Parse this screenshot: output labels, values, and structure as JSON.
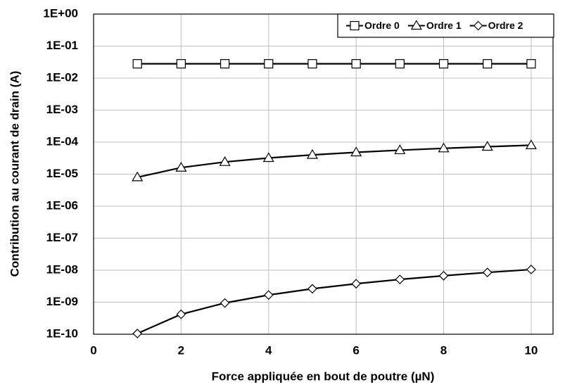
{
  "chart_data": {
    "type": "line",
    "x_label": "Force appliquée en bout de poutre (µN)",
    "y_label": "Contribution au courant de drain (A)",
    "log_y": true,
    "grid": true,
    "legend": "top-right",
    "xlim": [
      0,
      10.5
    ],
    "xticks": [
      0,
      2,
      4,
      6,
      8,
      10
    ],
    "ylim": [
      1e-10,
      1
    ],
    "yticks": [
      {
        "value": 1,
        "label": "1E+00"
      },
      {
        "value": 0.1,
        "label": "1E-01"
      },
      {
        "value": 0.01,
        "label": "1E-02"
      },
      {
        "value": 0.001,
        "label": "1E-03"
      },
      {
        "value": 0.0001,
        "label": "1E-04"
      },
      {
        "value": 1e-05,
        "label": "1E-05"
      },
      {
        "value": 1e-06,
        "label": "1E-06"
      },
      {
        "value": 1e-07,
        "label": "1E-07"
      },
      {
        "value": 1e-08,
        "label": "1E-08"
      },
      {
        "value": 1e-09,
        "label": "1E-09"
      },
      {
        "value": 1e-10,
        "label": "1E-10"
      }
    ],
    "x": [
      1,
      2,
      3,
      4,
      5,
      6,
      7,
      8,
      9,
      10
    ],
    "series": [
      {
        "name": "Ordre 0",
        "color": "#000000",
        "marker": "square",
        "values": [
          0.028,
          0.028,
          0.028,
          0.028,
          0.028,
          0.028,
          0.028,
          0.028,
          0.028,
          0.028
        ]
      },
      {
        "name": "Ordre 1",
        "color": "#000000",
        "marker": "triangle",
        "values": [
          8e-06,
          1.6e-05,
          2.4e-05,
          3.2e-05,
          4e-05,
          4.8e-05,
          5.6e-05,
          6.4e-05,
          7.2e-05,
          8e-05
        ]
      },
      {
        "name": "Ordre 2",
        "color": "#000000",
        "marker": "diamond",
        "values": [
          1.05e-10,
          4.2e-10,
          9.45e-10,
          1.68e-09,
          2.63e-09,
          3.78e-09,
          5.15e-09,
          6.72e-09,
          8.51e-09,
          1.05e-08
        ]
      }
    ]
  }
}
